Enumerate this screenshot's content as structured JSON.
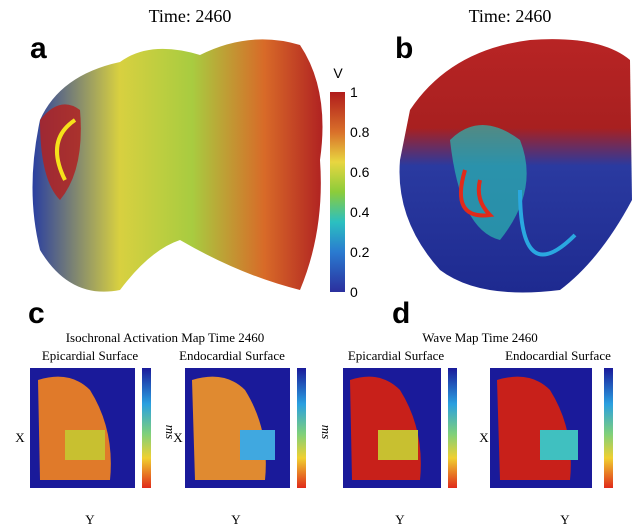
{
  "panels": [
    {
      "label": "a",
      "title": "Time: 2460",
      "colorbar": {
        "unit": "V",
        "ticks": [
          1,
          0.8,
          0.6,
          0.4,
          0.2,
          0
        ]
      }
    },
    {
      "label": "b",
      "title": "Time: 2460"
    },
    {
      "label": "c",
      "title": "Isochronal Activation Map Time 2460",
      "maps": [
        {
          "title": "Epicardial Surface",
          "x_label": "X",
          "y_label": "Y",
          "unit": "ms"
        },
        {
          "title": "Endocardial Surface",
          "x_label": "X",
          "y_label": "Y",
          "unit": "ms"
        }
      ]
    },
    {
      "label": "d",
      "title": "Wave Map Time 2460",
      "maps": [
        {
          "title": "Epicardial Surface",
          "y_label": "Y"
        },
        {
          "title": "Endocardial Surface",
          "x_label": "X",
          "y_label": "Y"
        }
      ]
    }
  ]
}
